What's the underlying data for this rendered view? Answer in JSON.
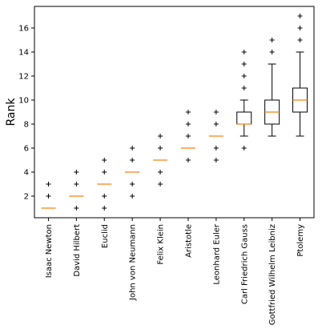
{
  "chart_data": {
    "type": "box",
    "title": "",
    "xlabel": "",
    "ylabel": "Rank",
    "ylim": [
      0.2,
      17.8
    ],
    "yticks": [
      2,
      4,
      6,
      8,
      10,
      12,
      14,
      16
    ],
    "grid": false,
    "colors": {
      "box": "#000000",
      "median": "#ff7f0e",
      "flier": "#000000"
    },
    "categories": [
      "Isaac Newton",
      "David Hilbert",
      "Euclid",
      "John von Neumann",
      "Felix Klein",
      "Aristotle",
      "Leonhard Euler",
      "Carl Friedrich Gauss",
      "Gottfried Wilhelm Leibniz",
      "Ptolemy"
    ],
    "boxes": [
      {
        "q1": 1,
        "median": 1,
        "q3": 1,
        "whisker_low": 1,
        "whisker_high": 1,
        "fliers": [
          2,
          3
        ]
      },
      {
        "q1": 2,
        "median": 2,
        "q3": 2,
        "whisker_low": 2,
        "whisker_high": 2,
        "fliers": [
          1,
          3,
          4
        ]
      },
      {
        "q1": 3,
        "median": 3,
        "q3": 3,
        "whisker_low": 3,
        "whisker_high": 3,
        "fliers": [
          1,
          2,
          4,
          5
        ]
      },
      {
        "q1": 4,
        "median": 4,
        "q3": 4,
        "whisker_low": 4,
        "whisker_high": 4,
        "fliers": [
          2,
          3,
          5,
          6
        ]
      },
      {
        "q1": 5,
        "median": 5,
        "q3": 5,
        "whisker_low": 5,
        "whisker_high": 5,
        "fliers": [
          3,
          4,
          6,
          7
        ]
      },
      {
        "q1": 6,
        "median": 6,
        "q3": 6,
        "whisker_low": 6,
        "whisker_high": 6,
        "fliers": [
          5,
          7,
          8,
          9
        ]
      },
      {
        "q1": 7,
        "median": 7,
        "q3": 7,
        "whisker_low": 7,
        "whisker_high": 7,
        "fliers": [
          5,
          6,
          8,
          9
        ]
      },
      {
        "q1": 8,
        "median": 8,
        "q3": 9,
        "whisker_low": 7,
        "whisker_high": 10,
        "fliers": [
          6,
          11,
          12,
          13,
          14
        ]
      },
      {
        "q1": 8,
        "median": 9,
        "q3": 10,
        "whisker_low": 7,
        "whisker_high": 13,
        "fliers": [
          14,
          15
        ]
      },
      {
        "q1": 9,
        "median": 10,
        "q3": 11,
        "whisker_low": 7,
        "whisker_high": 14,
        "fliers": [
          15,
          16,
          17
        ]
      }
    ]
  }
}
